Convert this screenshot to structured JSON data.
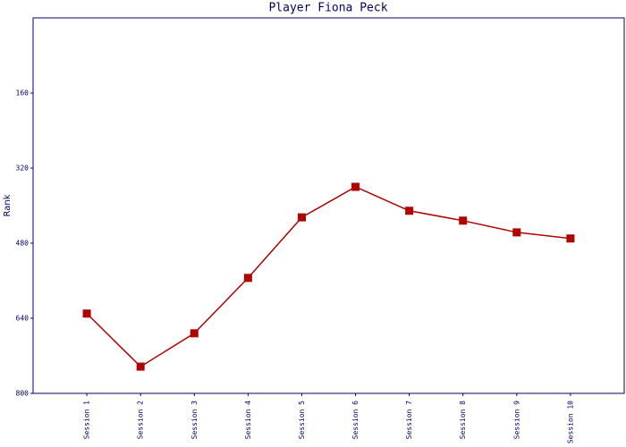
{
  "chart_data": {
    "type": "line",
    "title": "Player Fiona Peck",
    "y_label": "Rank",
    "categories": [
      "Session 1",
      "Session 2",
      "Session 3",
      "Session 4",
      "Session 5",
      "Session 6",
      "Session 7",
      "Session 8",
      "Session 9",
      "Session 10"
    ],
    "series": [
      {
        "name": "Rank",
        "color": "#b00000",
        "values": [
          630,
          743,
          672,
          554,
          425,
          360,
          411,
          432,
          457,
          470
        ]
      }
    ],
    "ylim": [
      800,
      0
    ],
    "yticks": [
      160,
      320,
      480,
      640,
      800
    ]
  }
}
